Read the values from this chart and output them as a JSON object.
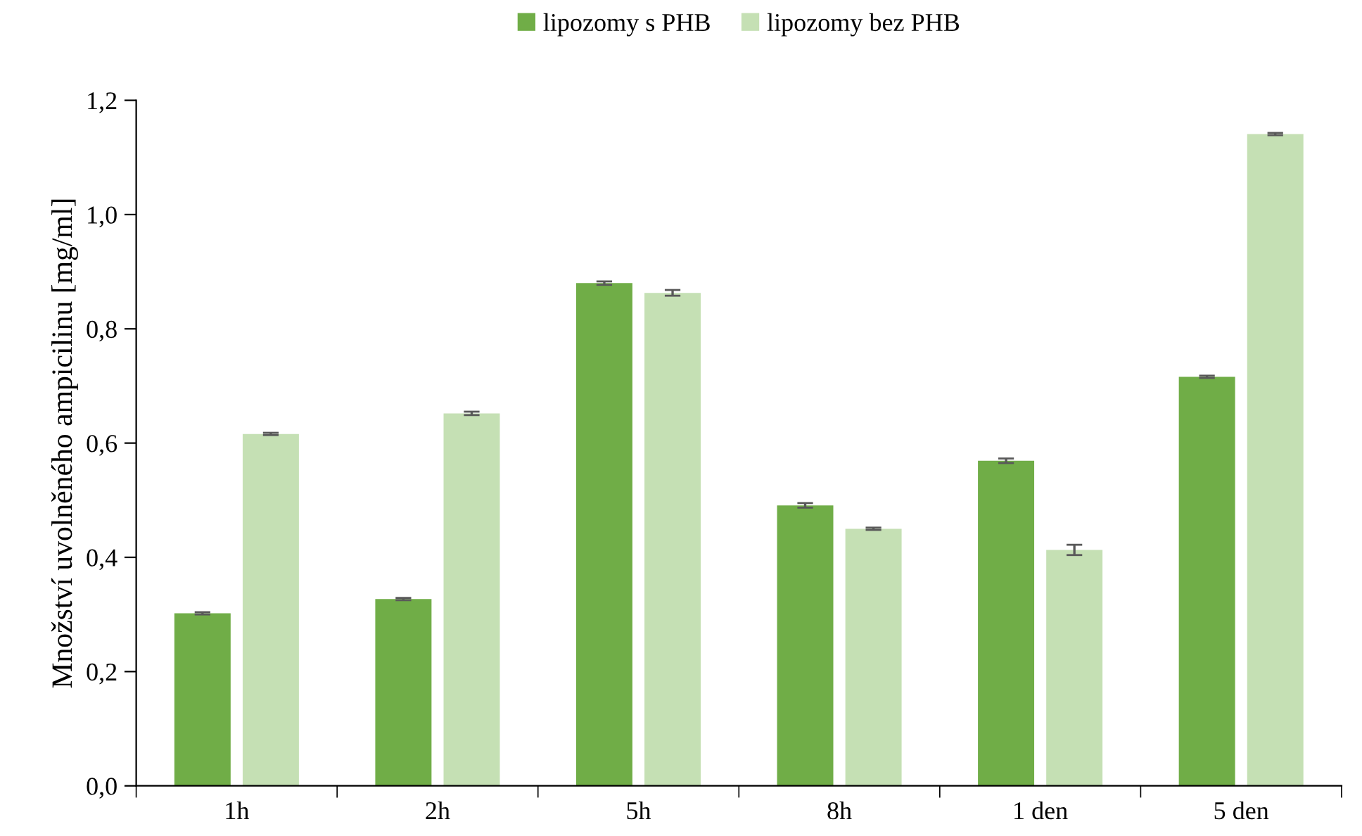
{
  "chart_data": {
    "type": "bar",
    "ylabel": "Množství uvolněného ampicilinu [mg/ml]",
    "categories": [
      "1h",
      "2h",
      "5h",
      "8h",
      "1 den",
      "5 den"
    ],
    "series": [
      {
        "name": "lipozomy s PHB",
        "color": "#70ad47",
        "values": [
          0.302,
          0.327,
          0.88,
          0.491,
          0.569,
          0.716
        ],
        "errors": [
          0.002,
          0.002,
          0.003,
          0.004,
          0.004,
          0.002
        ]
      },
      {
        "name": "lipozomy bez PHB",
        "color": "#c5e0b4",
        "values": [
          0.616,
          0.652,
          0.863,
          0.45,
          0.413,
          1.141
        ],
        "errors": [
          0.002,
          0.003,
          0.005,
          0.002,
          0.009,
          0.002
        ]
      }
    ],
    "ylim": [
      0,
      1.2
    ],
    "yticks": [
      {
        "value": 0,
        "label": "0,0"
      },
      {
        "value": 0.2,
        "label": "0,2"
      },
      {
        "value": 0.4,
        "label": "0,4"
      },
      {
        "value": 0.6,
        "label": "0,6"
      },
      {
        "value": 0.8,
        "label": "0,8"
      },
      {
        "value": 1.0,
        "label": "1,0"
      },
      {
        "value": 1.2,
        "label": "1,2"
      }
    ],
    "grid": false,
    "legend": "top"
  }
}
